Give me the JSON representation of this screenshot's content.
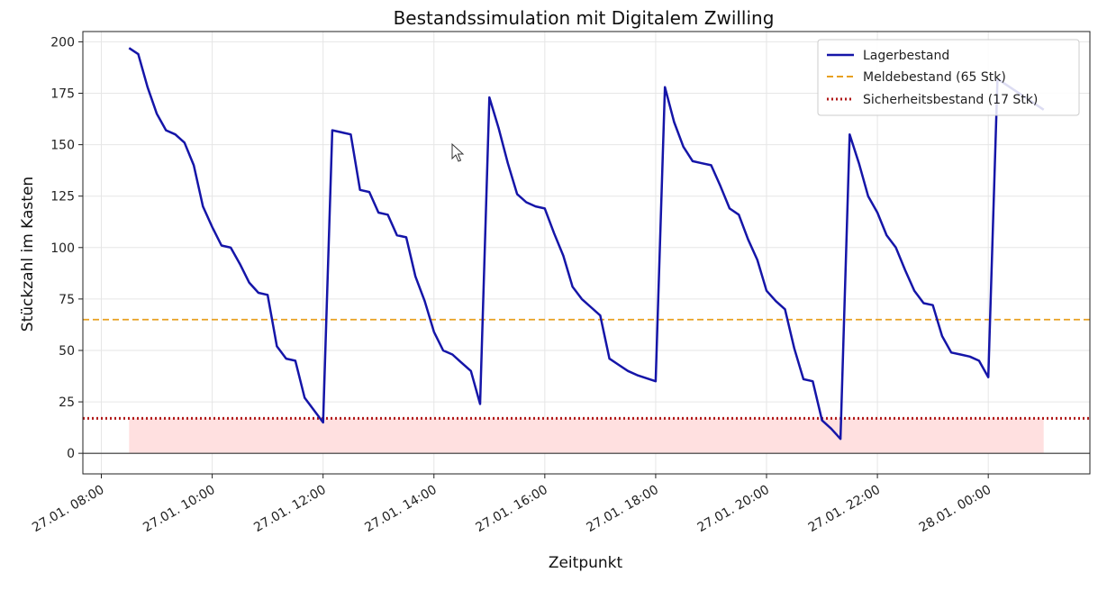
{
  "chart_data": {
    "type": "line",
    "title": "Bestandssimulation mit Digitalem Zwilling",
    "xlabel": "Zeitpunkt",
    "ylabel": "Stückzahl im Kasten",
    "ylim": [
      -10,
      205
    ],
    "xlim": [
      "27.01. 07:40",
      "28.01. 01:50"
    ],
    "yticks": [
      0,
      25,
      50,
      75,
      100,
      125,
      150,
      175,
      200
    ],
    "xticks": [
      "27.01. 08:00",
      "27.01. 10:00",
      "27.01. 12:00",
      "27.01. 14:00",
      "27.01. 16:00",
      "27.01. 18:00",
      "27.01. 20:00",
      "27.01. 22:00",
      "28.01. 00:00"
    ],
    "grid": true,
    "legend_position": "top-right",
    "colors": {
      "series": "#1515a8",
      "reorder": "#e8a020",
      "safety": "#b01818",
      "shade": "#ffe0e0",
      "zero_line": "#333333"
    },
    "series": [
      {
        "name": "Lagerbestand",
        "x": [
          "27.01. 08:30",
          "27.01. 08:40",
          "27.01. 08:50",
          "27.01. 09:00",
          "27.01. 09:10",
          "27.01. 09:20",
          "27.01. 09:30",
          "27.01. 09:40",
          "27.01. 09:50",
          "27.01. 10:00",
          "27.01. 10:10",
          "27.01. 10:20",
          "27.01. 10:30",
          "27.01. 10:40",
          "27.01. 10:50",
          "27.01. 11:00",
          "27.01. 11:10",
          "27.01. 11:20",
          "27.01. 11:30",
          "27.01. 11:40",
          "27.01. 12:00",
          "27.01. 12:10",
          "27.01. 12:20",
          "27.01. 12:30",
          "27.01. 12:40",
          "27.01. 12:50",
          "27.01. 13:00",
          "27.01. 13:10",
          "27.01. 13:20",
          "27.01. 13:30",
          "27.01. 13:40",
          "27.01. 13:50",
          "27.01. 14:00",
          "27.01. 14:10",
          "27.01. 14:20",
          "27.01. 14:30",
          "27.01. 14:40",
          "27.01. 14:50",
          "27.01. 15:00",
          "27.01. 15:10",
          "27.01. 15:20",
          "27.01. 15:30",
          "27.01. 15:40",
          "27.01. 15:50",
          "27.01. 16:00",
          "27.01. 16:10",
          "27.01. 16:20",
          "27.01. 16:30",
          "27.01. 16:40",
          "27.01. 16:50",
          "27.01. 17:00",
          "27.01. 17:10",
          "27.01. 17:20",
          "27.01. 17:30",
          "27.01. 17:40",
          "27.01. 18:00",
          "27.01. 18:10",
          "27.01. 18:20",
          "27.01. 18:30",
          "27.01. 18:40",
          "27.01. 18:50",
          "27.01. 19:00",
          "27.01. 19:10",
          "27.01. 19:20",
          "27.01. 19:30",
          "27.01. 19:40",
          "27.01. 19:50",
          "27.01. 20:00",
          "27.01. 20:10",
          "27.01. 20:20",
          "27.01. 20:30",
          "27.01. 20:40",
          "27.01. 20:50",
          "27.01. 21:00",
          "27.01. 21:10",
          "27.01. 21:20",
          "27.01. 21:30",
          "27.01. 21:40",
          "27.01. 21:50",
          "27.01. 22:00",
          "27.01. 22:10",
          "27.01. 22:20",
          "27.01. 22:30",
          "27.01. 22:40",
          "27.01. 22:50",
          "27.01. 23:00",
          "27.01. 23:10",
          "27.01. 23:20",
          "27.01. 23:30",
          "27.01. 23:40",
          "27.01. 23:50",
          "28.01. 00:00",
          "28.01. 00:10",
          "28.01. 00:20",
          "28.01. 00:30",
          "28.01. 00:40",
          "28.01. 00:50",
          "28.01. 01:00"
        ],
        "values": [
          197,
          194,
          178,
          165,
          157,
          155,
          151,
          140,
          120,
          110,
          101,
          100,
          92,
          83,
          78,
          77,
          52,
          46,
          45,
          27,
          15,
          157,
          156,
          155,
          128,
          127,
          117,
          116,
          106,
          105,
          86,
          74,
          59,
          50,
          48,
          44,
          40,
          24,
          173,
          158,
          141,
          126,
          122,
          120,
          119,
          107,
          96,
          81,
          75,
          71,
          67,
          46,
          43,
          40,
          38,
          35,
          178,
          161,
          149,
          142,
          141,
          140,
          130,
          119,
          116,
          104,
          94,
          79,
          74,
          70,
          51,
          36,
          35,
          16,
          12,
          7,
          155,
          141,
          125,
          117,
          106,
          100,
          89,
          79,
          73,
          72,
          57,
          49,
          48,
          47,
          45,
          37,
          182,
          179,
          176,
          173,
          170,
          167
        ]
      }
    ],
    "reference_lines": [
      {
        "name": "Meldebestand (65 Stk)",
        "y": 65,
        "style": "dashed"
      },
      {
        "name": "Sicherheitsbestand (17 Stk)",
        "y": 17,
        "style": "dotted"
      }
    ],
    "shaded_region": {
      "y_from": 0,
      "y_to": 17,
      "x_from": "27.01. 08:30",
      "x_to": "28.01. 01:00"
    }
  }
}
